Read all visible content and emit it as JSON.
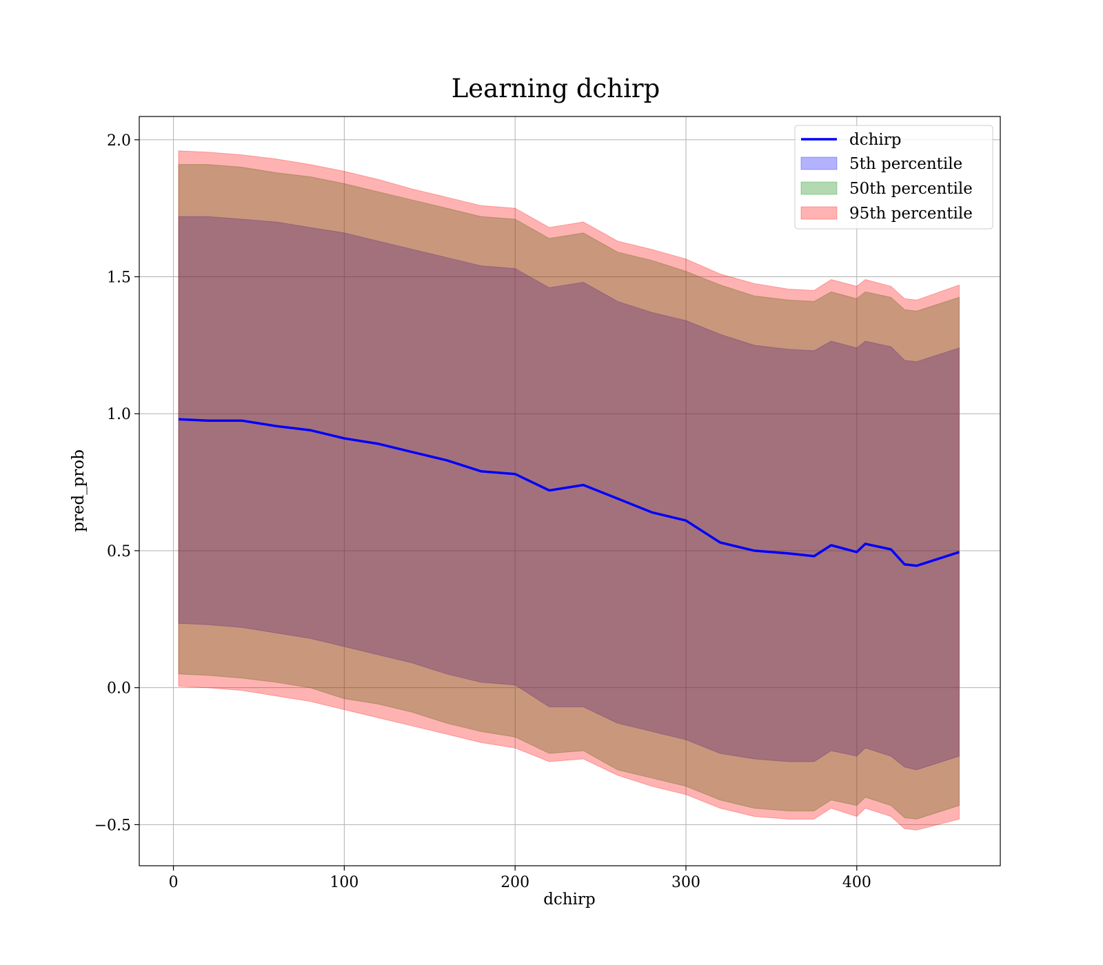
{
  "chart_data": {
    "type": "area",
    "title": "Learning dchirp",
    "xlabel": "dchirp",
    "ylabel": "pred_prob",
    "xlim": [
      -20,
      484
    ],
    "ylim": [
      -0.65,
      2.085
    ],
    "xticks": [
      0,
      100,
      200,
      300,
      400
    ],
    "xtick_labels": [
      "0",
      "100",
      "200",
      "300",
      "400"
    ],
    "yticks": [
      -0.5,
      0.0,
      0.5,
      1.0,
      1.5,
      2.0
    ],
    "ytick_labels": [
      "−0.5",
      "0.0",
      "0.5",
      "1.0",
      "1.5",
      "2.0"
    ],
    "grid": true,
    "legend_position": "top-right",
    "x": [
      3,
      20,
      40,
      60,
      80,
      100,
      120,
      140,
      160,
      180,
      200,
      220,
      240,
      260,
      280,
      300,
      320,
      340,
      360,
      375,
      385,
      400,
      405,
      420,
      428,
      435,
      460
    ],
    "series": [
      {
        "name": "dchirp",
        "kind": "line",
        "color": "#0000ff",
        "values": [
          0.98,
          0.975,
          0.975,
          0.955,
          0.94,
          0.91,
          0.89,
          0.86,
          0.83,
          0.79,
          0.78,
          0.72,
          0.74,
          0.69,
          0.64,
          0.61,
          0.53,
          0.5,
          0.49,
          0.48,
          0.52,
          0.495,
          0.525,
          0.505,
          0.45,
          0.445,
          0.495
        ]
      },
      {
        "name": "5th percentile",
        "kind": "band",
        "color": "#0000ff",
        "low": [
          0.235,
          0.23,
          0.22,
          0.2,
          0.18,
          0.15,
          0.12,
          0.09,
          0.05,
          0.02,
          0.01,
          -0.07,
          -0.07,
          -0.13,
          -0.16,
          -0.19,
          -0.24,
          -0.26,
          -0.27,
          -0.27,
          -0.23,
          -0.25,
          -0.22,
          -0.25,
          -0.29,
          -0.3,
          -0.25
        ],
        "high": [
          1.72,
          1.72,
          1.71,
          1.7,
          1.68,
          1.66,
          1.63,
          1.6,
          1.57,
          1.54,
          1.53,
          1.46,
          1.48,
          1.41,
          1.37,
          1.34,
          1.29,
          1.25,
          1.235,
          1.23,
          1.265,
          1.24,
          1.265,
          1.245,
          1.195,
          1.19,
          1.24
        ]
      },
      {
        "name": "50th percentile",
        "kind": "band",
        "color": "#008000",
        "low": [
          0.05,
          0.045,
          0.035,
          0.02,
          0.0,
          -0.04,
          -0.06,
          -0.09,
          -0.13,
          -0.16,
          -0.18,
          -0.24,
          -0.23,
          -0.3,
          -0.33,
          -0.36,
          -0.41,
          -0.44,
          -0.45,
          -0.45,
          -0.41,
          -0.43,
          -0.4,
          -0.43,
          -0.475,
          -0.48,
          -0.43
        ],
        "high": [
          1.91,
          1.91,
          1.9,
          1.88,
          1.865,
          1.84,
          1.81,
          1.78,
          1.75,
          1.72,
          1.71,
          1.64,
          1.66,
          1.59,
          1.56,
          1.52,
          1.47,
          1.43,
          1.415,
          1.41,
          1.445,
          1.42,
          1.445,
          1.425,
          1.38,
          1.375,
          1.425
        ]
      },
      {
        "name": "95th percentile",
        "kind": "band",
        "color": "#ff0000",
        "low": [
          0.005,
          0.0,
          -0.01,
          -0.03,
          -0.05,
          -0.08,
          -0.11,
          -0.14,
          -0.17,
          -0.2,
          -0.22,
          -0.27,
          -0.26,
          -0.32,
          -0.36,
          -0.39,
          -0.44,
          -0.47,
          -0.48,
          -0.48,
          -0.44,
          -0.47,
          -0.44,
          -0.47,
          -0.515,
          -0.52,
          -0.48
        ],
        "high": [
          1.96,
          1.955,
          1.945,
          1.93,
          1.91,
          1.885,
          1.855,
          1.82,
          1.79,
          1.76,
          1.75,
          1.68,
          1.7,
          1.63,
          1.6,
          1.565,
          1.51,
          1.475,
          1.455,
          1.45,
          1.49,
          1.465,
          1.49,
          1.465,
          1.42,
          1.415,
          1.47
        ]
      }
    ]
  }
}
